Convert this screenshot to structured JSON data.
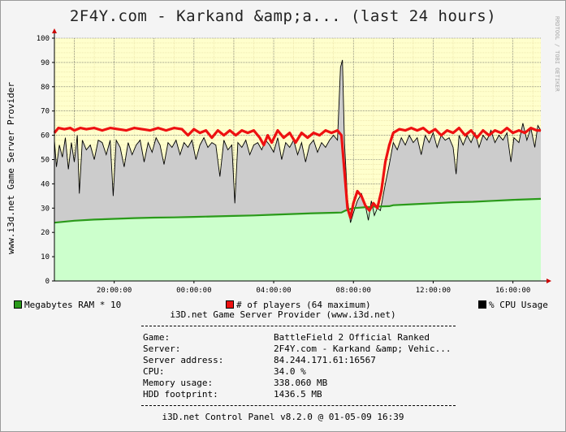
{
  "title": "2F4Y.com - Karkand &amp;a... (last 24 hours)",
  "watermark": "RRDTOOL / TOBI OETIKER",
  "colors": {
    "plot_bg": "#ffffcc",
    "grid_minor": "#e6dca0",
    "grid_major": "#555555",
    "ram_fill": "#ccffcc",
    "ram_line": "#2a9a1a",
    "cpu_fill": "#cccccc",
    "cpu_line": "#000000",
    "players_line": "#ee1111",
    "axis_arrow": "#cc0000"
  },
  "chart_data": {
    "type": "line",
    "title": "2F4Y.com - Karkand &amp;a... (last 24 hours)",
    "ylabel": "www.i3d.net Game Server Provider",
    "ylim": [
      0,
      100
    ],
    "y_ticks": [
      0,
      10,
      20,
      30,
      40,
      50,
      60,
      70,
      80,
      90,
      100
    ],
    "x_range_hours": [
      17.0,
      16.4
    ],
    "x_ticks": [
      {
        "label": "20:00:00",
        "hour": 20
      },
      {
        "label": "00:00:00",
        "hour": 24
      },
      {
        "label": "04:00:00",
        "hour": 28
      },
      {
        "label": "08:00:00",
        "hour": 32
      },
      {
        "label": "12:00:00",
        "hour": 36
      },
      {
        "label": "16:00:00",
        "hour": 40
      }
    ],
    "grid": true,
    "series": [
      {
        "name": "Megabytes RAM * 10",
        "kind": "area",
        "points": [
          [
            17,
            24
          ],
          [
            18,
            24.8
          ],
          [
            19,
            25.3
          ],
          [
            20,
            25.6
          ],
          [
            21,
            25.9
          ],
          [
            22,
            26.1
          ],
          [
            23,
            26.2
          ],
          [
            24,
            26.4
          ],
          [
            25,
            26.6
          ],
          [
            26,
            26.8
          ],
          [
            27,
            27.0
          ],
          [
            28,
            27.3
          ],
          [
            29,
            27.6
          ],
          [
            30,
            27.9
          ],
          [
            31,
            28.1
          ],
          [
            31.4,
            28.2
          ],
          [
            31.6,
            29
          ],
          [
            32,
            30
          ],
          [
            33,
            30.6
          ],
          [
            33.8,
            30.8
          ],
          [
            34,
            31.2
          ],
          [
            35,
            31.6
          ],
          [
            36,
            32.0
          ],
          [
            37,
            32.4
          ],
          [
            38,
            32.6
          ],
          [
            39,
            33.0
          ],
          [
            40,
            33.4
          ],
          [
            41.4,
            33.8
          ]
        ]
      },
      {
        "name": "% CPU Usage",
        "kind": "area",
        "points": [
          [
            17,
            58
          ],
          [
            17.1,
            47
          ],
          [
            17.25,
            56
          ],
          [
            17.4,
            51
          ],
          [
            17.55,
            59
          ],
          [
            17.7,
            46
          ],
          [
            17.85,
            57
          ],
          [
            18,
            49
          ],
          [
            18.15,
            60
          ],
          [
            18.25,
            36
          ],
          [
            18.4,
            58
          ],
          [
            18.6,
            54
          ],
          [
            18.8,
            56
          ],
          [
            19,
            50
          ],
          [
            19.2,
            58
          ],
          [
            19.4,
            57
          ],
          [
            19.6,
            52
          ],
          [
            19.8,
            58
          ],
          [
            19.95,
            35
          ],
          [
            20.1,
            58
          ],
          [
            20.3,
            55
          ],
          [
            20.5,
            47
          ],
          [
            20.7,
            57
          ],
          [
            20.9,
            52
          ],
          [
            21.1,
            56
          ],
          [
            21.3,
            58
          ],
          [
            21.5,
            49
          ],
          [
            21.7,
            57
          ],
          [
            21.9,
            53
          ],
          [
            22.1,
            59
          ],
          [
            22.3,
            56
          ],
          [
            22.5,
            48
          ],
          [
            22.7,
            57
          ],
          [
            22.9,
            55
          ],
          [
            23.1,
            58
          ],
          [
            23.3,
            52
          ],
          [
            23.5,
            57
          ],
          [
            23.7,
            55
          ],
          [
            23.9,
            58
          ],
          [
            24.1,
            50
          ],
          [
            24.3,
            56
          ],
          [
            24.5,
            59
          ],
          [
            24.7,
            55
          ],
          [
            24.9,
            57
          ],
          [
            25.1,
            56
          ],
          [
            25.3,
            43
          ],
          [
            25.5,
            58
          ],
          [
            25.7,
            54
          ],
          [
            25.9,
            56
          ],
          [
            26.05,
            32
          ],
          [
            26.2,
            57
          ],
          [
            26.4,
            55
          ],
          [
            26.6,
            58
          ],
          [
            26.8,
            52
          ],
          [
            27.0,
            56
          ],
          [
            27.2,
            57
          ],
          [
            27.4,
            54
          ],
          [
            27.6,
            58
          ],
          [
            27.8,
            56
          ],
          [
            28.0,
            53
          ],
          [
            28.2,
            59
          ],
          [
            28.4,
            50
          ],
          [
            28.6,
            57
          ],
          [
            28.8,
            55
          ],
          [
            29.0,
            58
          ],
          [
            29.2,
            52
          ],
          [
            29.4,
            57
          ],
          [
            29.6,
            49
          ],
          [
            29.8,
            56
          ],
          [
            30,
            58
          ],
          [
            30.2,
            53
          ],
          [
            30.4,
            57
          ],
          [
            30.6,
            55
          ],
          [
            30.8,
            58
          ],
          [
            31,
            60
          ],
          [
            31.2,
            58
          ],
          [
            31.35,
            88
          ],
          [
            31.45,
            91
          ],
          [
            31.55,
            57
          ],
          [
            31.7,
            34
          ],
          [
            31.85,
            24
          ],
          [
            32.0,
            28
          ],
          [
            32.2,
            33
          ],
          [
            32.4,
            36
          ],
          [
            32.6,
            31
          ],
          [
            32.75,
            25
          ],
          [
            32.9,
            33
          ],
          [
            33.05,
            27
          ],
          [
            33.2,
            30
          ],
          [
            33.35,
            29
          ],
          [
            33.6,
            40
          ],
          [
            33.8,
            48
          ],
          [
            34.0,
            57
          ],
          [
            34.2,
            54
          ],
          [
            34.4,
            59
          ],
          [
            34.6,
            56
          ],
          [
            34.8,
            60
          ],
          [
            35.0,
            57
          ],
          [
            35.2,
            59
          ],
          [
            35.4,
            52
          ],
          [
            35.6,
            60
          ],
          [
            35.8,
            57
          ],
          [
            36.0,
            61
          ],
          [
            36.2,
            55
          ],
          [
            36.4,
            60
          ],
          [
            36.6,
            58
          ],
          [
            36.8,
            59
          ],
          [
            37.0,
            55
          ],
          [
            37.15,
            44
          ],
          [
            37.3,
            60
          ],
          [
            37.5,
            56
          ],
          [
            37.7,
            60
          ],
          [
            37.9,
            57
          ],
          [
            38.1,
            61
          ],
          [
            38.3,
            55
          ],
          [
            38.5,
            60
          ],
          [
            38.7,
            58
          ],
          [
            38.9,
            62
          ],
          [
            39.1,
            57
          ],
          [
            39.3,
            60
          ],
          [
            39.5,
            58
          ],
          [
            39.7,
            61
          ],
          [
            39.9,
            49
          ],
          [
            40.05,
            59
          ],
          [
            40.3,
            57
          ],
          [
            40.5,
            65
          ],
          [
            40.7,
            58
          ],
          [
            40.9,
            63
          ],
          [
            41.1,
            55
          ],
          [
            41.25,
            64
          ],
          [
            41.4,
            62
          ]
        ]
      },
      {
        "name": "# of players (64 maximum)",
        "kind": "line",
        "points": [
          [
            17,
            61
          ],
          [
            17.2,
            63
          ],
          [
            17.5,
            62.5
          ],
          [
            17.8,
            63
          ],
          [
            18,
            62
          ],
          [
            18.3,
            63
          ],
          [
            18.6,
            62.5
          ],
          [
            19,
            63
          ],
          [
            19.4,
            62
          ],
          [
            19.8,
            63
          ],
          [
            20.2,
            62.5
          ],
          [
            20.6,
            62
          ],
          [
            21,
            63
          ],
          [
            21.4,
            62.5
          ],
          [
            21.8,
            62
          ],
          [
            22.2,
            63
          ],
          [
            22.6,
            62
          ],
          [
            23,
            63
          ],
          [
            23.4,
            62.5
          ],
          [
            23.7,
            60
          ],
          [
            24,
            62.5
          ],
          [
            24.3,
            61
          ],
          [
            24.6,
            62
          ],
          [
            24.9,
            59
          ],
          [
            25.2,
            62
          ],
          [
            25.5,
            60
          ],
          [
            25.8,
            62
          ],
          [
            26.1,
            60
          ],
          [
            26.4,
            62
          ],
          [
            26.7,
            61
          ],
          [
            27.0,
            62
          ],
          [
            27.3,
            59
          ],
          [
            27.5,
            56
          ],
          [
            27.7,
            60
          ],
          [
            27.9,
            57
          ],
          [
            28.2,
            62
          ],
          [
            28.5,
            59
          ],
          [
            28.8,
            61
          ],
          [
            29.1,
            57
          ],
          [
            29.4,
            61
          ],
          [
            29.7,
            59
          ],
          [
            30,
            61
          ],
          [
            30.3,
            60
          ],
          [
            30.6,
            62
          ],
          [
            30.9,
            61
          ],
          [
            31.2,
            62
          ],
          [
            31.4,
            60
          ],
          [
            31.55,
            45
          ],
          [
            31.7,
            30
          ],
          [
            31.85,
            26
          ],
          [
            32.0,
            32
          ],
          [
            32.2,
            37
          ],
          [
            32.4,
            35
          ],
          [
            32.6,
            31
          ],
          [
            32.8,
            29
          ],
          [
            33.0,
            32
          ],
          [
            33.2,
            30
          ],
          [
            33.4,
            37
          ],
          [
            33.6,
            49
          ],
          [
            33.8,
            56
          ],
          [
            34.0,
            61
          ],
          [
            34.3,
            62.5
          ],
          [
            34.6,
            62
          ],
          [
            34.9,
            63
          ],
          [
            35.2,
            62
          ],
          [
            35.5,
            63
          ],
          [
            35.8,
            61
          ],
          [
            36.1,
            62.5
          ],
          [
            36.4,
            60
          ],
          [
            36.7,
            62
          ],
          [
            37.0,
            61
          ],
          [
            37.3,
            63
          ],
          [
            37.6,
            60
          ],
          [
            37.9,
            62
          ],
          [
            38.2,
            59
          ],
          [
            38.5,
            62
          ],
          [
            38.8,
            60
          ],
          [
            39.1,
            62
          ],
          [
            39.4,
            61
          ],
          [
            39.7,
            63
          ],
          [
            40.0,
            61
          ],
          [
            40.3,
            62
          ],
          [
            40.6,
            61
          ],
          [
            40.9,
            63
          ],
          [
            41.2,
            62
          ],
          [
            41.4,
            62
          ]
        ]
      }
    ]
  },
  "legend": {
    "ram": "Megabytes RAM * 10",
    "players": "# of players (64 maximum)",
    "cpu": "% CPU Usage"
  },
  "info": {
    "provider_line": "i3D.net Game Server Provider (www.i3d.net)",
    "divider": "-------------------------------------------------------",
    "rows": [
      {
        "key": "Game:",
        "value": "BattleField 2 Official Ranked"
      },
      {
        "key": "Server:",
        "value": "2F4Y.com - Karkand &amp; Vehic..."
      },
      {
        "key": "Server address:",
        "value": "84.244.171.61:16567"
      },
      {
        "key": "CPU:",
        "value": "34.0 %"
      },
      {
        "key": "Memory usage:",
        "value": "338.060 MB"
      },
      {
        "key": "HDD footprint:",
        "value": "1436.5 MB"
      }
    ],
    "footer": "i3D.net Control Panel v8.2.0 @ 01-05-09 16:39"
  }
}
